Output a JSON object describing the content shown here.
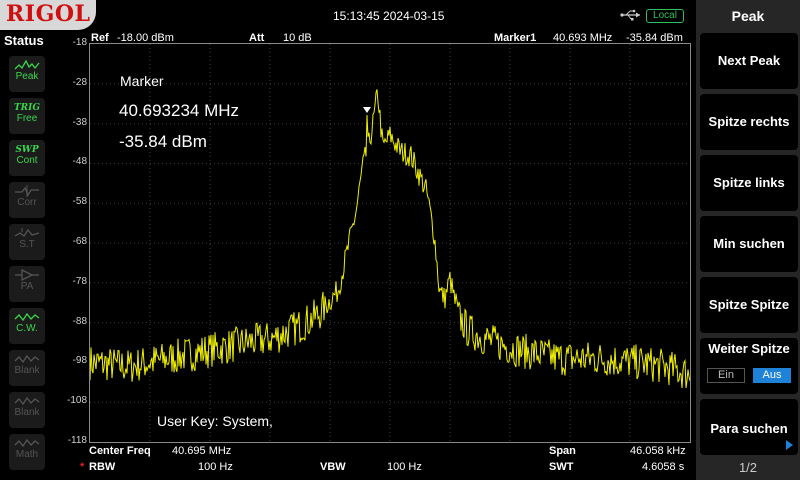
{
  "brand": "RIGOL",
  "datetime": "15:13:45 2024-03-15",
  "remote_status": "Local",
  "status_panel": {
    "title": "Status",
    "items": [
      {
        "name": "peak-detector",
        "label": "Peak",
        "icon": "peak-detector-icon",
        "state": "active"
      },
      {
        "name": "trig",
        "top": "TRIG",
        "label": "Free",
        "state": "active"
      },
      {
        "name": "swp",
        "top": "SWP",
        "label": "Cont",
        "state": "active"
      },
      {
        "name": "corr",
        "label": "Corr",
        "icon": "correction-icon",
        "state": "dim"
      },
      {
        "name": "st",
        "label": "S.T",
        "icon": "source-tracking-icon",
        "state": "dim"
      },
      {
        "name": "pa",
        "label": "PA",
        "icon": "preamp-icon",
        "state": "dim"
      },
      {
        "name": "cw",
        "label": "C.W.",
        "icon": "clear-write-icon",
        "state": "active"
      },
      {
        "name": "blank1",
        "label": "Blank",
        "icon": "trace-blank-icon",
        "state": "dim"
      },
      {
        "name": "blank2",
        "label": "Blank",
        "icon": "trace-blank-icon",
        "state": "dim"
      },
      {
        "name": "math",
        "label": "Math",
        "icon": "math-icon",
        "state": "dim"
      }
    ]
  },
  "header": {
    "ref_label": "Ref",
    "ref_value": "-18.00 dBm",
    "att_label": "Att",
    "att_value": "10 dB",
    "marker_label": "Marker1",
    "marker_freq": "40.693 MHz",
    "marker_amp": "-35.84 dBm"
  },
  "marker_readout": {
    "title": "Marker",
    "freq": "40.693234 MHz",
    "amp": "-35.84 dBm"
  },
  "user_key": "User Key:   System,",
  "footer": {
    "center_label": "Center Freq",
    "center_value": "40.695 MHz",
    "span_label": "Span",
    "span_value": "46.058 kHz",
    "rbw_star": "*",
    "rbw_label": "RBW",
    "rbw_value": "100 Hz",
    "vbw_label": "VBW",
    "vbw_value": "100 Hz",
    "swt_label": "SWT",
    "swt_value": "4.6058 s"
  },
  "softkeys": {
    "title": "Peak",
    "next_peak": "Next Peak",
    "peak_right": "Spitze rechts",
    "peak_left": "Spitze links",
    "min_search": "Min suchen",
    "peak_peak": "Spitze Spitze",
    "cont_peak": "Weiter Spitze",
    "cont_peak_on": "Ein",
    "cont_peak_off": "Aus",
    "cont_peak_state": "Aus",
    "para_search": "Para suchen",
    "page": "1/2"
  },
  "chart_data": {
    "type": "line",
    "title": "",
    "xlabel": "",
    "ylabel": "",
    "ylim": [
      -118,
      -18
    ],
    "y_ticks": [
      "-18",
      "-28",
      "-38",
      "-48",
      "-58",
      "-68",
      "-78",
      "-88",
      "-98",
      "-108",
      "-118"
    ],
    "x_center_mhz": 40.695,
    "x_span_khz": 46.058,
    "grid": true,
    "trace_color": "#f0f000",
    "series": [
      {
        "x_khz": [
          -23.03,
          -20.0,
          -17.0,
          -14.0,
          -11.0,
          -9.0,
          -7.0,
          -5.5,
          -4.0,
          -3.2,
          -2.6,
          -2.1,
          -1.6,
          -1.25,
          -0.95,
          -0.55,
          0.0,
          0.8,
          1.6,
          2.8,
          3.4,
          3.8,
          4.2,
          4.6,
          5.2,
          6.0,
          8.0,
          10.0,
          13.0,
          16.0,
          19.0,
          21.0,
          23.03
        ],
        "y_dbm": [
          -98,
          -99,
          -97,
          -95,
          -93,
          -92,
          -89,
          -86,
          -80,
          -69,
          -60,
          -49,
          -43,
          -37,
          -30,
          -44,
          -41,
          -45,
          -46,
          -55,
          -66,
          -80,
          -82,
          -77,
          -86,
          -90,
          -93,
          -95,
          -97,
          -97,
          -98,
          -99,
          -101
        ]
      }
    ],
    "marker": {
      "x_mhz": 40.693234,
      "y_dbm": -35.84
    }
  }
}
